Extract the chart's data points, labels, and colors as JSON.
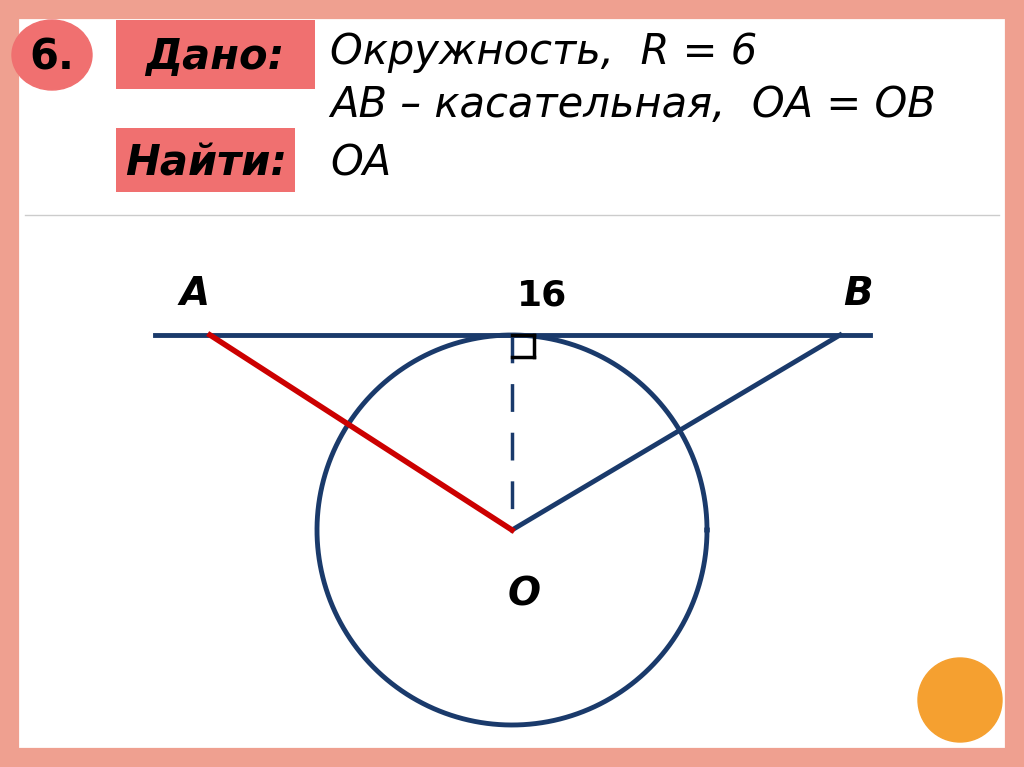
{
  "bg_color": "#ffffff",
  "border_color": "#EFA090",
  "title_number": "6.",
  "dado_label": "Дано:",
  "dado_bg": "#F07070",
  "line1": "Окружность,  R = 6",
  "line2": "AB – касательная,  OA = OB",
  "naiti_label": "Найти:",
  "naiti_bg": "#F07070",
  "naiti_text": "OA",
  "circle_color": "#1a3a6b",
  "label_16": "16",
  "label_A": "A",
  "label_B": "B",
  "label_O": "O",
  "red_color": "#cc0000",
  "orange_color": "#F5A030",
  "salmon_color": "#EFA090"
}
